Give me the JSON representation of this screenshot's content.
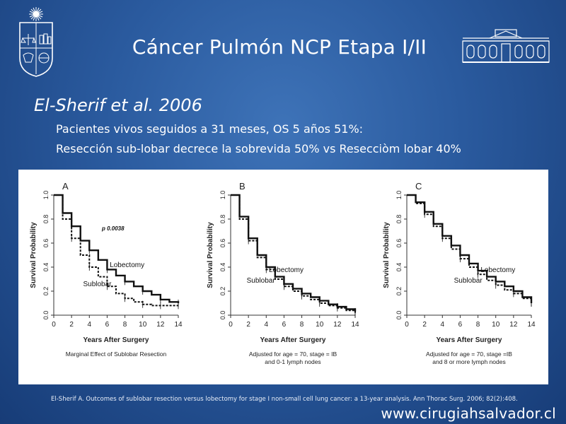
{
  "slide": {
    "title": "Cáncer Pulmón  NCP Etapa I/II",
    "subtitle": "El-Sherif et al. 2006",
    "bullets": [
      "Pacientes vivos seguidos a 31 meses, OS 5 años 51%:",
      "Resección sub-lobar decrece la sobrevida 50% vs Resecciòm lobar 40%"
    ],
    "reference": "El-Sherif A. Outcomes of sublobar resection versus lobectomy for stage I non-small cell lung cancer: a 13-year analysis. Ann Thorac Surg. 2006; 82(2):408.",
    "website": "www.cirugiahsalvador.cl",
    "colors": {
      "background": "#2a5a9e",
      "text": "#ffffff",
      "curve": "#111111"
    }
  },
  "chart_data": [
    {
      "type": "line",
      "panel_label": "A",
      "xlabel": "Years After Surgery",
      "ylabel": "Survival Probability",
      "caption": [
        "Marginal Effect of Sublobar Resection"
      ],
      "annotation": "p  0.0038",
      "xlim": [
        0,
        14
      ],
      "ylim": [
        0,
        1.0
      ],
      "x_ticks": [
        0,
        2,
        4,
        6,
        8,
        10,
        12,
        14
      ],
      "y_ticks": [
        "0.0",
        "0.2",
        "0.4",
        "0.6",
        "0.8",
        "1.0"
      ],
      "series": [
        {
          "name": "Lobectomy",
          "x": [
            0,
            1,
            2,
            3,
            4,
            5,
            6,
            7,
            8,
            9,
            10,
            11,
            12,
            13,
            14
          ],
          "y": [
            1.0,
            0.85,
            0.74,
            0.62,
            0.54,
            0.46,
            0.38,
            0.33,
            0.28,
            0.24,
            0.2,
            0.17,
            0.13,
            0.11,
            0.1
          ],
          "style": "solid"
        },
        {
          "name": "Sublobar",
          "x": [
            0,
            1,
            2,
            3,
            4,
            5,
            6,
            7,
            8,
            9,
            10,
            11,
            12,
            13,
            14
          ],
          "y": [
            1.0,
            0.8,
            0.64,
            0.5,
            0.4,
            0.32,
            0.24,
            0.18,
            0.14,
            0.11,
            0.09,
            0.08,
            0.08,
            0.08,
            0.08
          ],
          "style": "dashed"
        }
      ],
      "series_labels": [
        {
          "series": "Lobectomy",
          "x": 6.3,
          "y": 0.4
        },
        {
          "series": "Sublobar",
          "x": 3.3,
          "y": 0.24
        }
      ]
    },
    {
      "type": "line",
      "panel_label": "B",
      "xlabel": "Years After Surgery",
      "ylabel": "Survival Probability",
      "caption": [
        "Adjusted for age = 70, stage = IB",
        "and 0-1 lymph nodes"
      ],
      "xlim": [
        0,
        14
      ],
      "ylim": [
        0,
        1.0
      ],
      "x_ticks": [
        0,
        2,
        4,
        6,
        8,
        10,
        12,
        14
      ],
      "y_ticks": [
        "0.0",
        "0.2",
        "0.4",
        "0.6",
        "0.8",
        "1.0"
      ],
      "series": [
        {
          "name": "Lobectomy",
          "x": [
            0,
            1,
            2,
            3,
            4,
            5,
            6,
            7,
            8,
            9,
            10,
            11,
            12,
            13,
            14
          ],
          "y": [
            1.0,
            0.82,
            0.64,
            0.5,
            0.4,
            0.32,
            0.26,
            0.22,
            0.18,
            0.15,
            0.12,
            0.09,
            0.07,
            0.05,
            0.03
          ],
          "style": "solid"
        },
        {
          "name": "Sublobar",
          "x": [
            0,
            1,
            2,
            3,
            4,
            5,
            6,
            7,
            8,
            9,
            10,
            11,
            12,
            13,
            14
          ],
          "y": [
            1.0,
            0.8,
            0.62,
            0.48,
            0.38,
            0.3,
            0.24,
            0.2,
            0.16,
            0.13,
            0.1,
            0.08,
            0.06,
            0.04,
            0.02
          ],
          "style": "dashed"
        }
      ],
      "series_labels": [
        {
          "series": "Lobectomy",
          "x": 4.3,
          "y": 0.36
        },
        {
          "series": "Sublobar",
          "x": 1.8,
          "y": 0.27
        }
      ]
    },
    {
      "type": "line",
      "panel_label": "C",
      "xlabel": "Years After Surgery",
      "ylabel": "Survival Probability",
      "caption": [
        "Adjusted for age = 70, stage =IB",
        "and 8 or more lymph nodes"
      ],
      "xlim": [
        0,
        14
      ],
      "ylim": [
        0,
        1.0
      ],
      "x_ticks": [
        0,
        2,
        4,
        6,
        8,
        10,
        12,
        14
      ],
      "y_ticks": [
        "0.0",
        "0.2",
        "0.4",
        "0.6",
        "0.8",
        "1.0"
      ],
      "series": [
        {
          "name": "Lobectomy",
          "x": [
            0,
            1,
            2,
            3,
            4,
            5,
            6,
            7,
            8,
            9,
            10,
            11,
            12,
            13,
            14
          ],
          "y": [
            1.0,
            0.94,
            0.86,
            0.76,
            0.66,
            0.58,
            0.5,
            0.43,
            0.37,
            0.32,
            0.28,
            0.24,
            0.2,
            0.15,
            0.1
          ],
          "style": "solid"
        },
        {
          "name": "Sublobar",
          "x": [
            0,
            1,
            2,
            3,
            4,
            5,
            6,
            7,
            8,
            9,
            10,
            11,
            12,
            13,
            14
          ],
          "y": [
            1.0,
            0.93,
            0.84,
            0.74,
            0.64,
            0.55,
            0.47,
            0.4,
            0.34,
            0.29,
            0.25,
            0.21,
            0.18,
            0.14,
            0.1
          ],
          "style": "dashed"
        }
      ],
      "series_labels": [
        {
          "series": "Lobectomy",
          "x": 8.3,
          "y": 0.36
        },
        {
          "series": "Sublobar",
          "x": 5.3,
          "y": 0.27
        }
      ]
    }
  ]
}
